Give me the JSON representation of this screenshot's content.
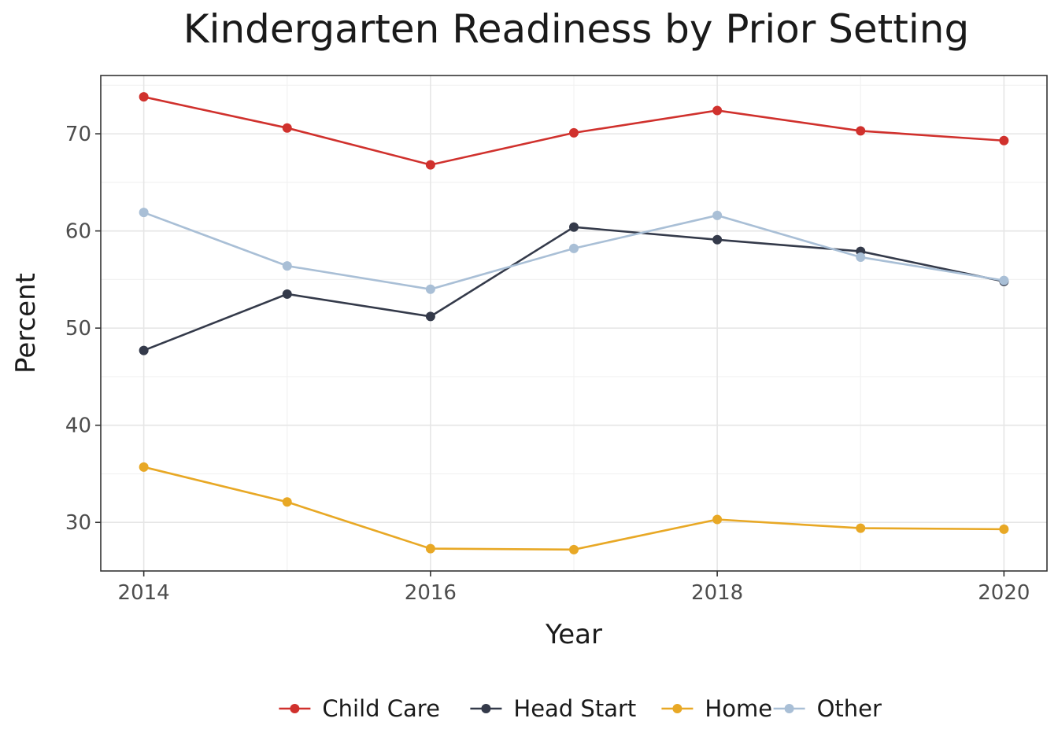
{
  "chart_data": {
    "type": "line",
    "title": "Kindergarten Readiness by Prior Setting",
    "xlabel": "Year",
    "ylabel": "Percent",
    "x": [
      2014,
      2015,
      2016,
      2017,
      2018,
      2019,
      2020
    ],
    "xlim": [
      2013.7,
      2020.3
    ],
    "ylim": [
      25,
      76
    ],
    "x_ticks": [
      2014,
      2016,
      2018,
      2020
    ],
    "y_ticks": [
      30,
      40,
      50,
      60,
      70
    ],
    "grid": true,
    "legend_position": "bottom",
    "series": [
      {
        "name": "Child Care",
        "color": "#d0312d",
        "values": [
          73.8,
          70.6,
          66.8,
          70.1,
          72.4,
          70.3,
          69.3
        ]
      },
      {
        "name": "Head Start",
        "color": "#343a4a",
        "values": [
          47.7,
          53.5,
          51.2,
          60.4,
          59.1,
          57.9,
          54.8
        ]
      },
      {
        "name": "Home",
        "color": "#e8a825",
        "values": [
          35.7,
          32.1,
          27.3,
          27.2,
          30.3,
          29.4,
          29.3
        ]
      },
      {
        "name": "Other",
        "color": "#a9bfd6",
        "values": [
          61.9,
          56.4,
          54.0,
          58.2,
          61.6,
          57.3,
          54.9
        ]
      }
    ]
  }
}
